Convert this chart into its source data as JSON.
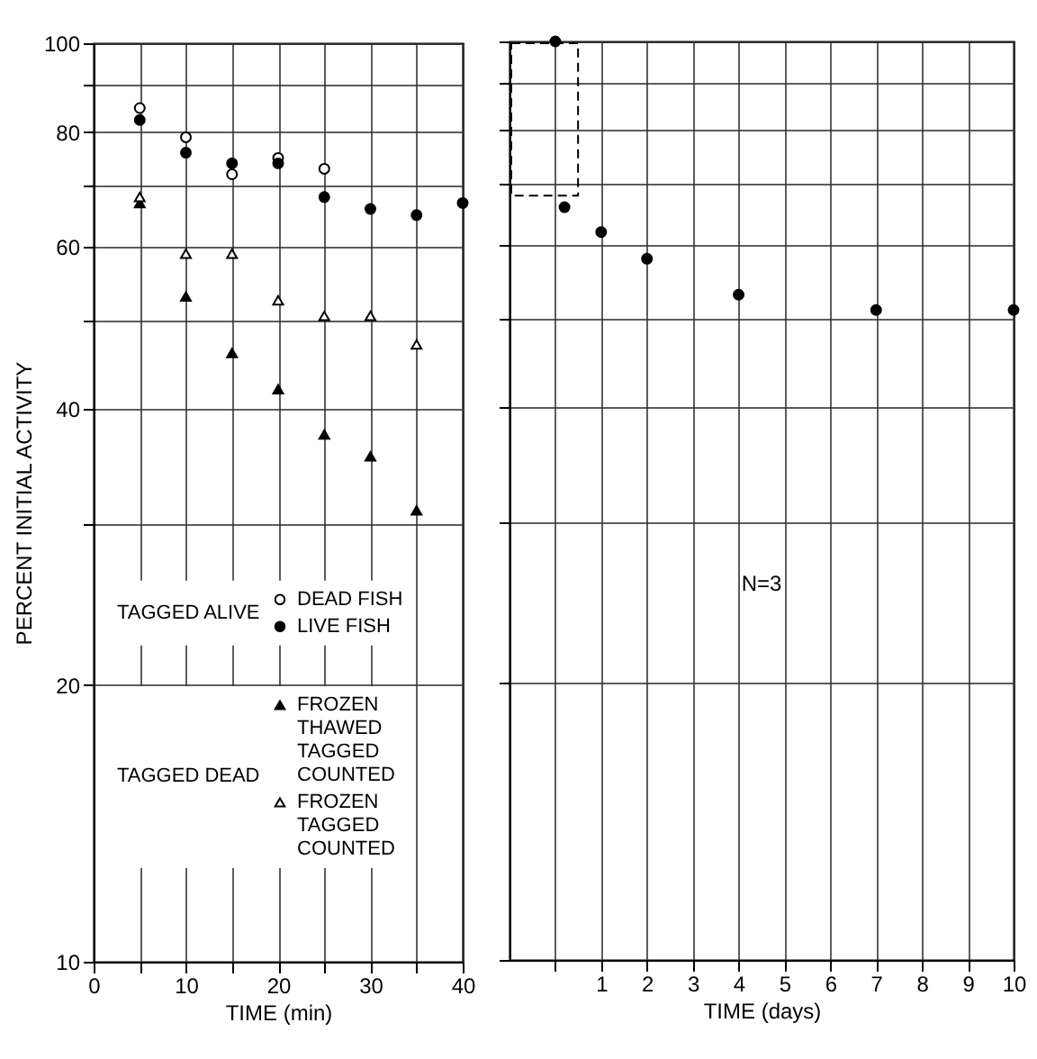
{
  "chart_data": [
    {
      "type": "scatter",
      "xlabel": "TIME (min)",
      "ylabel": "PERCENT INITIAL ACTIVITY",
      "xlim": [
        0,
        40
      ],
      "xticks": [
        0,
        {
          "value": 5,
          "label": null
        },
        10,
        {
          "value": 15,
          "label": null
        },
        20,
        {
          "value": 25,
          "label": null
        },
        30,
        {
          "value": 35,
          "label": null
        },
        40
      ],
      "ylim": [
        10,
        100
      ],
      "yticks": [
        10,
        20,
        {
          "value": 30,
          "label": null
        },
        40,
        {
          "value": 50,
          "label": null
        },
        60,
        {
          "value": 70,
          "label": null
        },
        80,
        {
          "value": 90,
          "label": null
        },
        100
      ],
      "log": "y",
      "grid": true,
      "legend": "bottom",
      "annotations": [
        "TAGGED ALIVE",
        "TAGGED DEAD"
      ],
      "series": [
        {
          "name": "DEAD FISH",
          "color": "#000000",
          "marker": "circle-open",
          "x": [
            5,
            10,
            15,
            20,
            25
          ],
          "values": [
            85,
            79,
            72,
            75,
            73
          ]
        },
        {
          "name": "LIVE FISH",
          "color": "#000000",
          "marker": "circle",
          "x": [
            5,
            10,
            15,
            20,
            25,
            30,
            35,
            40
          ],
          "values": [
            82.5,
            76,
            74,
            74,
            68,
            66,
            65,
            67
          ]
        },
        {
          "name": "FROZEN THAWED TAGGED COUNTED",
          "color": "#000000",
          "marker": "triangle",
          "x": [
            5,
            10,
            15,
            20,
            25,
            30,
            35
          ],
          "values": [
            67,
            53,
            46,
            42,
            37.5,
            35.5,
            31
          ]
        },
        {
          "name": "FROZEN TAGGED COUNTED",
          "color": "#000000",
          "marker": "triangle-open",
          "x": [
            5,
            10,
            15,
            20,
            25,
            30,
            35
          ],
          "values": [
            68,
            59,
            59,
            52.5,
            50.5,
            50.5,
            47
          ]
        }
      ]
    },
    {
      "type": "scatter",
      "xlabel": "TIME (days)",
      "xlim": [
        -1,
        10
      ],
      "xticks": [
        {
          "value": 0,
          "label": null
        },
        1,
        2,
        3,
        4,
        5,
        6,
        7,
        8,
        9,
        10
      ],
      "ylim": [
        10,
        100
      ],
      "yticks": [
        {
          "value": 10,
          "label": null
        },
        {
          "value": 20,
          "label": null
        },
        {
          "value": 30,
          "label": null
        },
        {
          "value": 40,
          "label": null
        },
        {
          "value": 50,
          "label": null
        },
        {
          "value": 60,
          "label": null
        },
        {
          "value": 70,
          "label": null
        },
        {
          "value": 80,
          "label": null
        },
        {
          "value": 90,
          "label": null
        },
        {
          "value": 100,
          "label": null
        }
      ],
      "log": "y",
      "grid": true,
      "tick_labels": "x",
      "marker": "circle",
      "annotations": [
        "N=3"
      ],
      "series": [
        {
          "color": "#000000",
          "x": [
            0,
            0.2,
            1,
            2,
            4,
            7,
            10
          ],
          "values": [
            100,
            66,
            62,
            58,
            53,
            51,
            51
          ]
        }
      ]
    }
  ]
}
